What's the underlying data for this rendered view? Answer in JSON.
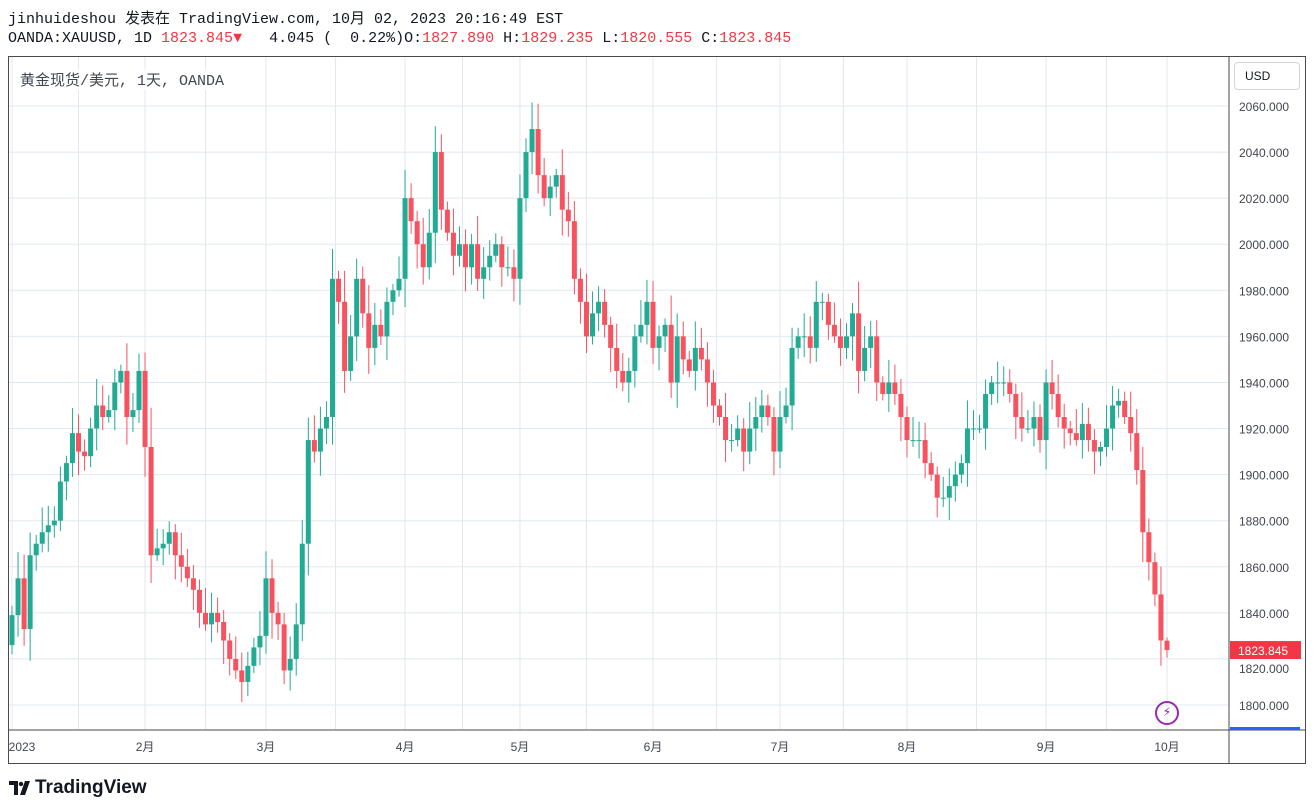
{
  "header": {
    "line1": "jinhuideshou 发表在 TradingView.com, 10月 02, 2023 20:16:49 EST",
    "symbol": "OANDA:XAUUSD, 1D",
    "last": "1823.845",
    "change": "4.045 (  0.22%)",
    "o_label": "O:",
    "o": "1827.890",
    "h_label": "H:",
    "h": "1829.235",
    "l_label": "L:",
    "l": "1820.555",
    "c_label": "C:",
    "c": "1823.845"
  },
  "chart_title": "黄金现货/美元, 1天, OANDA",
  "currency_button": "USD",
  "logo": "TradingView",
  "colors": {
    "up": "#22ab94",
    "down": "#f7525f",
    "grid": "#e0e8f0",
    "last_price": "#f23645",
    "alert": "#9c27b0"
  },
  "icons": {
    "alert": "lightning-icon",
    "change_direction": "triangle-down-icon"
  },
  "chart_data": {
    "type": "candlestick",
    "title": "黄金现货/美元, 1天, OANDA",
    "ylim": [
      1790,
      2068
    ],
    "y_ticks": [
      "2060.000",
      "2040.000",
      "2020.000",
      "2000.000",
      "1980.000",
      "1960.000",
      "1940.000",
      "1920.000",
      "1900.000",
      "1880.000",
      "1860.000",
      "1840.000",
      "1820.000",
      "1800.000"
    ],
    "x_ticks": [
      {
        "label": "2023",
        "index": 0
      },
      {
        "label": "2月",
        "index": 22
      },
      {
        "label": "3月",
        "index": 42
      },
      {
        "label": "4月",
        "index": 65
      },
      {
        "label": "5月",
        "index": 84
      },
      {
        "label": "6月",
        "index": 106
      },
      {
        "label": "7月",
        "index": 127
      },
      {
        "label": "8月",
        "index": 148
      },
      {
        "label": "9月",
        "index": 171
      },
      {
        "label": "10月",
        "index": 191
      }
    ],
    "last_price_label": "1823.845",
    "last_candle": {
      "open": 1827.89,
      "high": 1829.235,
      "low": 1820.555,
      "close": 1823.845
    },
    "first_open": 1826,
    "close": [
      1839,
      1855,
      1833,
      1865,
      1870,
      1875,
      1878,
      1880,
      1897,
      1905,
      1918,
      1910,
      1908,
      1920,
      1930,
      1925,
      1928,
      1940,
      1945,
      1925,
      1928,
      1945,
      1912,
      1865,
      1868,
      1870,
      1875,
      1865,
      1860,
      1855,
      1850,
      1840,
      1835,
      1840,
      1836,
      1828,
      1820,
      1815,
      1810,
      1817,
      1825,
      1830,
      1855,
      1840,
      1835,
      1815,
      1820,
      1835,
      1870,
      1915,
      1910,
      1920,
      1925,
      1985,
      1975,
      1945,
      1960,
      1985,
      1970,
      1955,
      1965,
      1960,
      1975,
      1980,
      1985,
      2020,
      2010,
      2000,
      1990,
      2005,
      2040,
      2015,
      2005,
      1995,
      2000,
      1990,
      2000,
      1985,
      1990,
      1995,
      2000,
      1990,
      1990,
      1985,
      2020,
      2040,
      2050,
      2030,
      2020,
      2025,
      2030,
      2015,
      2010,
      1985,
      1975,
      1960,
      1970,
      1975,
      1965,
      1955,
      1945,
      1940,
      1945,
      1960,
      1965,
      1975,
      1955,
      1960,
      1965,
      1940,
      1960,
      1950,
      1945,
      1955,
      1950,
      1940,
      1930,
      1925,
      1915,
      1915,
      1920,
      1910,
      1920,
      1925,
      1930,
      1925,
      1910,
      1925,
      1930,
      1955,
      1960,
      1960,
      1955,
      1975,
      1975,
      1965,
      1960,
      1955,
      1960,
      1970,
      1945,
      1955,
      1960,
      1940,
      1935,
      1940,
      1935,
      1925,
      1915,
      1915,
      1915,
      1905,
      1900,
      1890,
      1890,
      1895,
      1900,
      1905,
      1920,
      1920,
      1920,
      1935,
      1940,
      1940,
      1940,
      1935,
      1925,
      1920,
      1920,
      1925,
      1915,
      1940,
      1935,
      1925,
      1920,
      1918,
      1915,
      1922,
      1915,
      1910,
      1912,
      1920,
      1930,
      1932,
      1925,
      1918,
      1902,
      1875,
      1862,
      1848,
      1828,
      1823.845
    ]
  }
}
